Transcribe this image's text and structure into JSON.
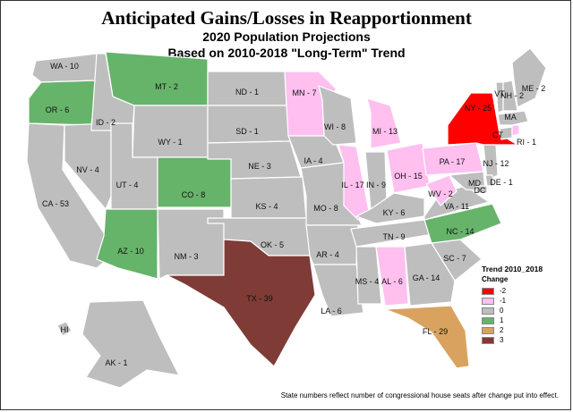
{
  "title": "Anticipated Gains/Losses in Reapportionment",
  "subtitle1": "2020 Population Projections",
  "subtitle2": "Based on 2010-2018 \"Long-Term\" Trend",
  "legend": {
    "title": "Trend 2010_2018",
    "subtitle": "Change",
    "items": [
      {
        "label": "-2",
        "color": "#ff0000"
      },
      {
        "label": "-1",
        "color": "#ffbfef"
      },
      {
        "label": "0",
        "color": "#bebebe"
      },
      {
        "label": "1",
        "color": "#66b36a"
      },
      {
        "label": "2",
        "color": "#d9a25f"
      },
      {
        "label": "3",
        "color": "#7f3b36"
      }
    ]
  },
  "footnote": "State numbers reflect number of congressional house seats after change put into effect.",
  "states": [
    {
      "abbr": "WA",
      "label": "WA - 10",
      "change": 0
    },
    {
      "abbr": "OR",
      "label": "OR - 6",
      "change": 1
    },
    {
      "abbr": "CA",
      "label": "CA - 53",
      "change": 0
    },
    {
      "abbr": "NV",
      "label": "NV - 4",
      "change": 0
    },
    {
      "abbr": "ID",
      "label": "ID - 2",
      "change": 0
    },
    {
      "abbr": "MT",
      "label": "MT - 2",
      "change": 1
    },
    {
      "abbr": "WY",
      "label": "WY - 1",
      "change": 0
    },
    {
      "abbr": "UT",
      "label": "UT - 4",
      "change": 0
    },
    {
      "abbr": "CO",
      "label": "CO - 8",
      "change": 1
    },
    {
      "abbr": "AZ",
      "label": "AZ - 10",
      "change": 1
    },
    {
      "abbr": "NM",
      "label": "NM - 3",
      "change": 0
    },
    {
      "abbr": "ND",
      "label": "ND - 1",
      "change": 0
    },
    {
      "abbr": "SD",
      "label": "SD - 1",
      "change": 0
    },
    {
      "abbr": "NE",
      "label": "NE - 3",
      "change": 0
    },
    {
      "abbr": "KS",
      "label": "KS - 4",
      "change": 0
    },
    {
      "abbr": "OK",
      "label": "OK - 5",
      "change": 0
    },
    {
      "abbr": "TX",
      "label": "TX - 39",
      "change": 3
    },
    {
      "abbr": "MN",
      "label": "MN - 7",
      "change": -1
    },
    {
      "abbr": "IA",
      "label": "IA - 4",
      "change": 0
    },
    {
      "abbr": "MO",
      "label": "MO - 8",
      "change": 0
    },
    {
      "abbr": "AR",
      "label": "AR - 4",
      "change": 0
    },
    {
      "abbr": "LA",
      "label": "LA - 6",
      "change": 0
    },
    {
      "abbr": "WI",
      "label": "WI - 8",
      "change": 0
    },
    {
      "abbr": "IL",
      "label": "IL - 17",
      "change": -1
    },
    {
      "abbr": "MI",
      "label": "MI - 13",
      "change": -1
    },
    {
      "abbr": "IN",
      "label": "IN - 9",
      "change": 0
    },
    {
      "abbr": "OH",
      "label": "OH - 15",
      "change": -1
    },
    {
      "abbr": "KY",
      "label": "KY - 6",
      "change": 0
    },
    {
      "abbr": "TN",
      "label": "TN - 9",
      "change": 0
    },
    {
      "abbr": "MS",
      "label": "MS - 4",
      "change": 0
    },
    {
      "abbr": "AL",
      "label": "AL - 6",
      "change": -1
    },
    {
      "abbr": "GA",
      "label": "GA - 14",
      "change": 0
    },
    {
      "abbr": "FL",
      "label": "FL - 29",
      "change": 2
    },
    {
      "abbr": "SC",
      "label": "SC - 7",
      "change": 0
    },
    {
      "abbr": "NC",
      "label": "NC - 14",
      "change": 1
    },
    {
      "abbr": "VA",
      "label": "VA - 11",
      "change": 0
    },
    {
      "abbr": "WV",
      "label": "WV - 2",
      "change": -1
    },
    {
      "abbr": "PA",
      "label": "PA - 17",
      "change": -1
    },
    {
      "abbr": "NY",
      "label": "NY - 25",
      "change": -2
    },
    {
      "abbr": "NJ",
      "label": "NJ - 12",
      "change": 0
    },
    {
      "abbr": "DE",
      "label": "DE - 1",
      "change": 0
    },
    {
      "abbr": "MD",
      "label": "MD",
      "change": 0
    },
    {
      "abbr": "DC",
      "label": "DC",
      "change": 0
    },
    {
      "abbr": "CT",
      "label": "CT",
      "change": 0
    },
    {
      "abbr": "RI",
      "label": "RI - 1",
      "change": -1
    },
    {
      "abbr": "MA",
      "label": "MA",
      "change": 0
    },
    {
      "abbr": "VT",
      "label": "VT",
      "change": 0
    },
    {
      "abbr": "NH",
      "label": "NH - 2",
      "change": 0
    },
    {
      "abbr": "ME",
      "label": "ME - 2",
      "change": 0
    },
    {
      "abbr": "AK",
      "label": "AK - 1",
      "change": 0
    },
    {
      "abbr": "HI",
      "label": "HI",
      "change": 0
    }
  ]
}
